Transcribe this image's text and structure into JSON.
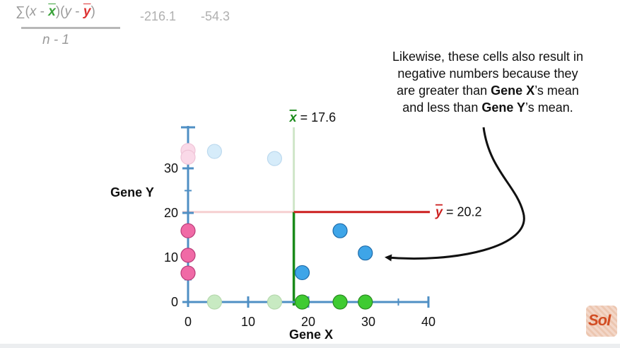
{
  "formula": {
    "sigma": "∑",
    "open1": "(",
    "x": "x",
    "minus1": " - ",
    "xbar": "x",
    "close1": ")(",
    "y": "y",
    "minus2": " - ",
    "ybar": "y",
    "close2": ")",
    "denominator": "n - 1"
  },
  "covariance_values": [
    "-216.1",
    "-54.3"
  ],
  "callout": {
    "line1": "Likewise, these cells also result in",
    "line2": "negative numbers because they",
    "line3a": "are greater than ",
    "line3b": "Gene X",
    "line3c": "’s mean",
    "line4a": "and less than ",
    "line4b": "Gene Y",
    "line4c": "’s mean."
  },
  "logo": {
    "text": "SoI"
  },
  "chart_data": {
    "type": "scatter",
    "xlabel": "Gene X",
    "ylabel": "Gene Y",
    "xlim": [
      0,
      40
    ],
    "ylim": [
      0,
      36
    ],
    "xticks": [
      "0",
      "10",
      "20",
      "30",
      "40"
    ],
    "yticks": [
      "0",
      "10",
      "20",
      "30"
    ],
    "mean_x": {
      "label": "= 17.6",
      "symbol": "x",
      "value": 17.6
    },
    "mean_y": {
      "label": "= 20.2",
      "symbol": "y",
      "value": 20.2
    },
    "colors": {
      "axis": "#4f8fc4",
      "green": "#1a8a1a",
      "red": "#cc1f1f",
      "blue": "#3ea5e8",
      "pink": "#f06aa6",
      "lightgreen": "#c8eac2",
      "lightblue": "#d6ecfa",
      "lightpink": "#fad9e8",
      "brightgreen": "#3fcb32"
    },
    "points": [
      {
        "x": 0,
        "y": 34,
        "color": "lightpink"
      },
      {
        "x": 0,
        "y": 32.5,
        "color": "lightpink"
      },
      {
        "x": 4.4,
        "y": 33.8,
        "color": "lightblue"
      },
      {
        "x": 14.4,
        "y": 32.2,
        "color": "lightblue"
      },
      {
        "x": 0,
        "y": 16,
        "color": "pink"
      },
      {
        "x": 0,
        "y": 10.5,
        "color": "pink"
      },
      {
        "x": 0,
        "y": 6.5,
        "color": "pink"
      },
      {
        "x": 4.4,
        "y": 0,
        "color": "lightgreen"
      },
      {
        "x": 14.4,
        "y": 0,
        "color": "lightgreen"
      },
      {
        "x": 19.0,
        "y": 6.6,
        "color": "blue"
      },
      {
        "x": 25.3,
        "y": 16.0,
        "color": "blue"
      },
      {
        "x": 29.5,
        "y": 11.0,
        "color": "blue"
      },
      {
        "x": 19.0,
        "y": 0,
        "color": "brightgreen"
      },
      {
        "x": 25.3,
        "y": 0,
        "color": "brightgreen"
      },
      {
        "x": 29.5,
        "y": 0,
        "color": "brightgreen"
      }
    ]
  }
}
